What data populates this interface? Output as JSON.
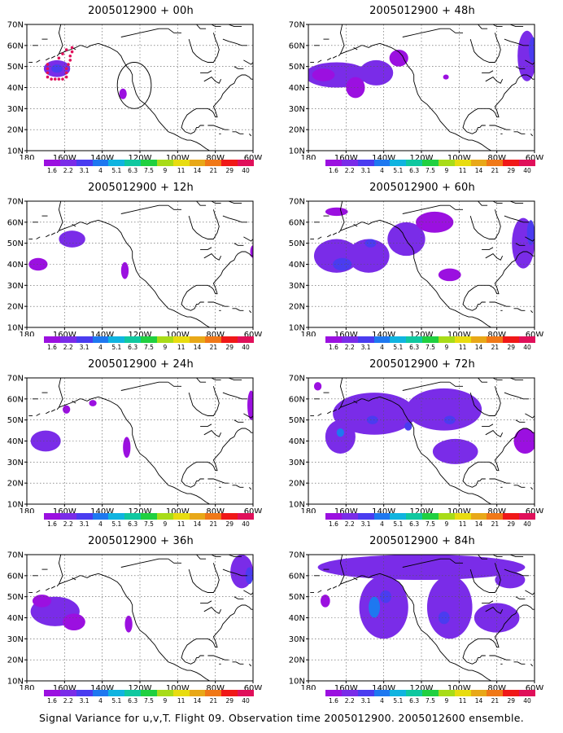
{
  "figure": {
    "caption": "Signal Variance for u,v,T. Flight 09. Observation time 2005012900. 2005012600 ensemble."
  },
  "colorbar": {
    "labels": [
      "1.6",
      "2.2",
      "3.1",
      "4",
      "5.1",
      "6.3",
      "7.5",
      "9",
      "11",
      "14",
      "21",
      "29",
      "40"
    ],
    "colors": [
      "#9b10e0",
      "#7a2ce8",
      "#4a3cf0",
      "#1e78f0",
      "#10b4e0",
      "#10c8a0",
      "#20d040",
      "#a8dc18",
      "#e8dc10",
      "#e8a818",
      "#f07818",
      "#f01818",
      "#e0105a"
    ]
  },
  "axes": {
    "x_ticks": [
      "180",
      "160W",
      "140W",
      "120W",
      "100W",
      "80W",
      "60W"
    ],
    "y_ticks": [
      "10N",
      "20N",
      "30N",
      "40N",
      "50N",
      "60N",
      "70N"
    ],
    "lon_range": [
      180,
      300
    ],
    "lat_range": [
      10,
      70
    ]
  },
  "fill_colors": {
    "light": "#9b10e0",
    "mid": "#7a2ce8",
    "dark": "#4a3cf0",
    "core": "#1e78f0",
    "obs": "#e0105a"
  },
  "panels": [
    {
      "id": "p00",
      "title": "2005012900 + 00h",
      "col": 0,
      "row": 0,
      "blobs": [
        {
          "lon": 196,
          "lat": 49,
          "rx": 7,
          "ry": 4,
          "level": "mid"
        },
        {
          "lon": 196,
          "lat": 49,
          "rx": 3,
          "ry": 2,
          "level": "dark"
        },
        {
          "lon": 231,
          "lat": 37,
          "rx": 2,
          "ry": 2.5,
          "level": "light"
        }
      ],
      "obs_points": [
        {
          "lon": 191,
          "lat": 45
        },
        {
          "lon": 191,
          "lat": 47
        },
        {
          "lon": 191,
          "lat": 49
        },
        {
          "lon": 191,
          "lat": 51
        },
        {
          "lon": 193,
          "lat": 44
        },
        {
          "lon": 195,
          "lat": 44
        },
        {
          "lon": 197,
          "lat": 44
        },
        {
          "lon": 199,
          "lat": 44
        },
        {
          "lon": 201,
          "lat": 45
        },
        {
          "lon": 201,
          "lat": 47
        },
        {
          "lon": 201,
          "lat": 49
        },
        {
          "lon": 202,
          "lat": 51
        },
        {
          "lon": 203,
          "lat": 53
        },
        {
          "lon": 203,
          "lat": 55
        },
        {
          "lon": 204,
          "lat": 57
        },
        {
          "lon": 204,
          "lat": 59
        },
        {
          "lon": 201,
          "lat": 58
        },
        {
          "lon": 199,
          "lat": 56
        },
        {
          "lon": 197,
          "lat": 54
        }
      ],
      "circle": {
        "lon": 237,
        "lat": 41,
        "r_lon": 9,
        "r_lat": 11
      }
    },
    {
      "id": "p48",
      "title": "2005012900 + 48h",
      "col": 1,
      "row": 0,
      "blobs": [
        {
          "lon": 195,
          "lat": 46,
          "rx": 17,
          "ry": 6,
          "level": "mid"
        },
        {
          "lon": 216,
          "lat": 47,
          "rx": 9,
          "ry": 6,
          "level": "mid"
        },
        {
          "lon": 228,
          "lat": 54,
          "rx": 5,
          "ry": 4,
          "level": "light"
        },
        {
          "lon": 205,
          "lat": 40,
          "rx": 5,
          "ry": 5,
          "level": "light"
        },
        {
          "lon": 188,
          "lat": 46,
          "rx": 6,
          "ry": 3,
          "level": "light"
        },
        {
          "lon": 253,
          "lat": 45,
          "rx": 1.5,
          "ry": 1.2,
          "level": "light"
        },
        {
          "lon": 296,
          "lat": 55,
          "rx": 5,
          "ry": 12,
          "level": "mid"
        },
        {
          "lon": 299,
          "lat": 58,
          "rx": 2,
          "ry": 6,
          "level": "dark"
        }
      ]
    },
    {
      "id": "p12",
      "title": "2005012900 + 12h",
      "col": 0,
      "row": 1,
      "blobs": [
        {
          "lon": 204,
          "lat": 52,
          "rx": 7,
          "ry": 4,
          "level": "mid"
        },
        {
          "lon": 186,
          "lat": 40,
          "rx": 5,
          "ry": 3,
          "level": "light"
        },
        {
          "lon": 232,
          "lat": 37,
          "rx": 2,
          "ry": 4,
          "level": "light"
        },
        {
          "lon": 300,
          "lat": 46,
          "rx": 1.5,
          "ry": 3,
          "level": "light"
        }
      ]
    },
    {
      "id": "p60",
      "title": "2005012900 + 60h",
      "col": 1,
      "row": 1,
      "blobs": [
        {
          "lon": 195,
          "lat": 44,
          "rx": 12,
          "ry": 8,
          "level": "mid"
        },
        {
          "lon": 212,
          "lat": 44,
          "rx": 11,
          "ry": 8,
          "level": "mid"
        },
        {
          "lon": 232,
          "lat": 52,
          "rx": 10,
          "ry": 8,
          "level": "mid"
        },
        {
          "lon": 247,
          "lat": 60,
          "rx": 10,
          "ry": 5,
          "level": "light"
        },
        {
          "lon": 195,
          "lat": 65,
          "rx": 6,
          "ry": 2,
          "level": "light"
        },
        {
          "lon": 255,
          "lat": 35,
          "rx": 6,
          "ry": 3,
          "level": "light"
        },
        {
          "lon": 294,
          "lat": 50,
          "rx": 6,
          "ry": 12,
          "level": "mid"
        },
        {
          "lon": 298,
          "lat": 55,
          "rx": 2,
          "ry": 6,
          "level": "dark"
        },
        {
          "lon": 213,
          "lat": 50,
          "rx": 3,
          "ry": 2,
          "level": "dark"
        },
        {
          "lon": 198,
          "lat": 40,
          "rx": 5,
          "ry": 3,
          "level": "dark"
        }
      ]
    },
    {
      "id": "p24",
      "title": "2005012900 + 24h",
      "col": 0,
      "row": 2,
      "blobs": [
        {
          "lon": 190,
          "lat": 40,
          "rx": 8,
          "ry": 5,
          "level": "mid"
        },
        {
          "lon": 201,
          "lat": 55,
          "rx": 2,
          "ry": 2,
          "level": "light"
        },
        {
          "lon": 215,
          "lat": 58,
          "rx": 2,
          "ry": 1.5,
          "level": "light"
        },
        {
          "lon": 233,
          "lat": 37,
          "rx": 2,
          "ry": 5,
          "level": "light"
        },
        {
          "lon": 299,
          "lat": 57,
          "rx": 2,
          "ry": 7,
          "level": "light"
        }
      ]
    },
    {
      "id": "p72",
      "title": "2005012900 + 72h",
      "col": 1,
      "row": 2,
      "blobs": [
        {
          "lon": 215,
          "lat": 53,
          "rx": 22,
          "ry": 10,
          "level": "mid"
        },
        {
          "lon": 252,
          "lat": 55,
          "rx": 20,
          "ry": 10,
          "level": "mid"
        },
        {
          "lon": 197,
          "lat": 42,
          "rx": 8,
          "ry": 8,
          "level": "mid"
        },
        {
          "lon": 258,
          "lat": 35,
          "rx": 12,
          "ry": 6,
          "level": "mid"
        },
        {
          "lon": 185,
          "lat": 66,
          "rx": 2,
          "ry": 2,
          "level": "light"
        },
        {
          "lon": 295,
          "lat": 40,
          "rx": 6,
          "ry": 6,
          "level": "light"
        },
        {
          "lon": 197,
          "lat": 44,
          "rx": 2,
          "ry": 2,
          "level": "core"
        },
        {
          "lon": 214,
          "lat": 50,
          "rx": 3,
          "ry": 2,
          "level": "dark"
        },
        {
          "lon": 233,
          "lat": 47,
          "rx": 2,
          "ry": 2,
          "level": "dark"
        },
        {
          "lon": 255,
          "lat": 50,
          "rx": 3,
          "ry": 2,
          "level": "dark"
        }
      ]
    },
    {
      "id": "p36",
      "title": "2005012900 + 36h",
      "col": 0,
      "row": 3,
      "blobs": [
        {
          "lon": 195,
          "lat": 43,
          "rx": 13,
          "ry": 7,
          "level": "mid"
        },
        {
          "lon": 205,
          "lat": 38,
          "rx": 6,
          "ry": 4,
          "level": "light"
        },
        {
          "lon": 188,
          "lat": 48,
          "rx": 5,
          "ry": 3,
          "level": "light"
        },
        {
          "lon": 234,
          "lat": 37,
          "rx": 2,
          "ry": 4,
          "level": "light"
        },
        {
          "lon": 294,
          "lat": 62,
          "rx": 6,
          "ry": 8,
          "level": "mid"
        },
        {
          "lon": 298,
          "lat": 60,
          "rx": 2,
          "ry": 4,
          "level": "dark"
        }
      ]
    },
    {
      "id": "p84",
      "title": "2005012900 + 84h",
      "col": 1,
      "row": 3,
      "blobs": [
        {
          "lon": 240,
          "lat": 64,
          "rx": 55,
          "ry": 6,
          "level": "mid"
        },
        {
          "lon": 220,
          "lat": 45,
          "rx": 13,
          "ry": 15,
          "level": "mid"
        },
        {
          "lon": 255,
          "lat": 45,
          "rx": 12,
          "ry": 15,
          "level": "mid"
        },
        {
          "lon": 280,
          "lat": 40,
          "rx": 12,
          "ry": 7,
          "level": "mid"
        },
        {
          "lon": 287,
          "lat": 58,
          "rx": 8,
          "ry": 4,
          "level": "mid"
        },
        {
          "lon": 189,
          "lat": 48,
          "rx": 2.5,
          "ry": 3,
          "level": "light"
        },
        {
          "lon": 215,
          "lat": 45,
          "rx": 3,
          "ry": 5,
          "level": "core"
        },
        {
          "lon": 221,
          "lat": 50,
          "rx": 3,
          "ry": 3,
          "level": "dark"
        },
        {
          "lon": 252,
          "lat": 40,
          "rx": 3,
          "ry": 3,
          "level": "dark"
        }
      ]
    }
  ]
}
